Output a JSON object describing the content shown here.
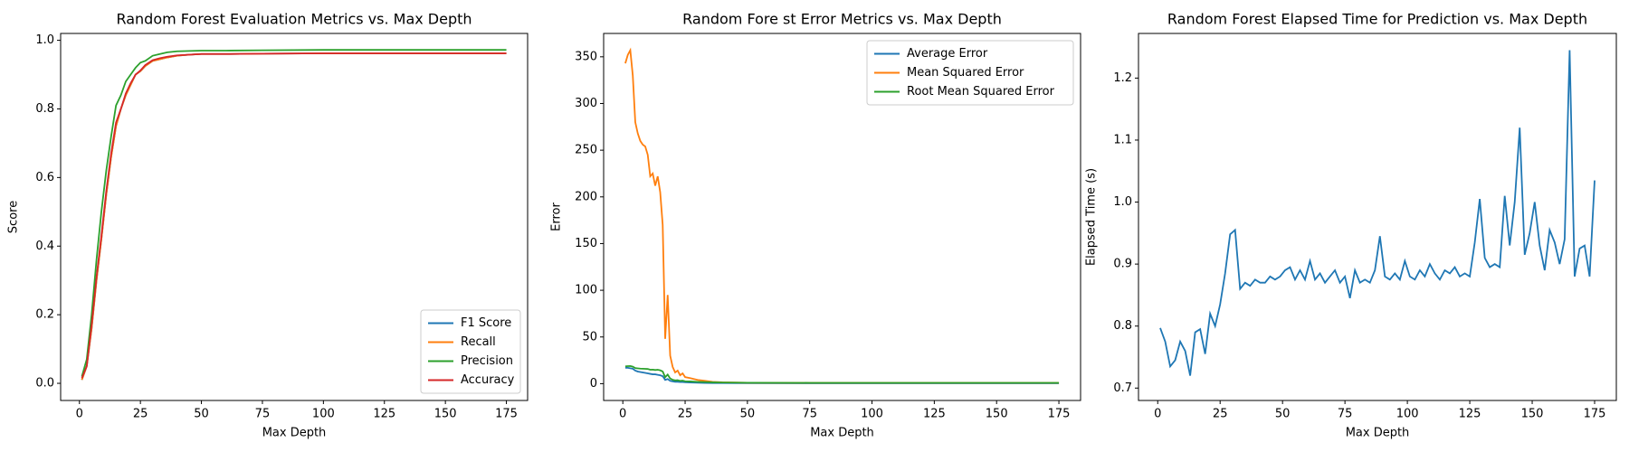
{
  "chart_data": [
    {
      "type": "line",
      "title": "Random Forest Evaluation Metrics vs. Max Depth",
      "xlabel": "Max Depth",
      "ylabel": "Score",
      "x": [
        1,
        3,
        5,
        7,
        9,
        11,
        13,
        15,
        17,
        19,
        21,
        23,
        25,
        27,
        30,
        33,
        36,
        40,
        45,
        50,
        60,
        75,
        100,
        125,
        150,
        175
      ],
      "series": [
        {
          "name": "F1 Score",
          "color": "#1f77b4",
          "values": [
            0.01,
            0.05,
            0.16,
            0.3,
            0.42,
            0.55,
            0.66,
            0.75,
            0.8,
            0.84,
            0.87,
            0.9,
            0.91,
            0.925,
            0.94,
            0.945,
            0.95,
            0.955,
            0.958,
            0.96,
            0.96,
            0.961,
            0.962,
            0.962,
            0.962,
            0.962
          ]
        },
        {
          "name": "Recall",
          "color": "#ff7f0e",
          "values": [
            0.01,
            0.05,
            0.16,
            0.3,
            0.42,
            0.55,
            0.66,
            0.75,
            0.8,
            0.84,
            0.87,
            0.9,
            0.91,
            0.925,
            0.94,
            0.945,
            0.95,
            0.955,
            0.958,
            0.96,
            0.96,
            0.961,
            0.962,
            0.962,
            0.962,
            0.962
          ]
        },
        {
          "name": "Precision",
          "color": "#2ca02c",
          "values": [
            0.02,
            0.07,
            0.2,
            0.36,
            0.5,
            0.62,
            0.72,
            0.81,
            0.84,
            0.88,
            0.9,
            0.92,
            0.935,
            0.94,
            0.955,
            0.96,
            0.965,
            0.968,
            0.969,
            0.97,
            0.97,
            0.971,
            0.972,
            0.972,
            0.972,
            0.972
          ]
        },
        {
          "name": "Accuracy",
          "color": "#d62728",
          "values": [
            0.015,
            0.05,
            0.17,
            0.31,
            0.43,
            0.56,
            0.67,
            0.76,
            0.8,
            0.845,
            0.875,
            0.9,
            0.912,
            0.928,
            0.942,
            0.948,
            0.952,
            0.956,
            0.958,
            0.96,
            0.96,
            0.961,
            0.962,
            0.962,
            0.962,
            0.962
          ]
        }
      ],
      "xlim": [
        -7.7,
        183.7
      ],
      "xticks": [
        0,
        25,
        50,
        75,
        100,
        125,
        150,
        175
      ],
      "ylim": [
        -0.05,
        1.02
      ],
      "yticks": [
        {
          "value": 0,
          "label": "0.0"
        },
        0.2,
        0.4,
        0.6,
        0.8,
        {
          "value": 1,
          "label": "1.0"
        }
      ],
      "legend": "lower right"
    },
    {
      "type": "line",
      "title": "Random Fore st Error Metrics vs. Max Depth",
      "xlabel": "Max Depth",
      "ylabel": "Error",
      "x": [
        1,
        2,
        3,
        4,
        5,
        6,
        7,
        8,
        9,
        10,
        11,
        12,
        13,
        14,
        15,
        16,
        17,
        18,
        19,
        20,
        21,
        22,
        23,
        24,
        25,
        27,
        30,
        33,
        36,
        40,
        50,
        75,
        100,
        125,
        150,
        175
      ],
      "series": [
        {
          "name": "Average Error",
          "color": "#1f77b4",
          "values": [
            17,
            17,
            16.5,
            16,
            14,
            13,
            12.5,
            12,
            11.5,
            11,
            10.5,
            10,
            10,
            9.5,
            9,
            8,
            4,
            5,
            3,
            2.5,
            2,
            2,
            1.8,
            1.7,
            1.5,
            1.3,
            1,
            0.8,
            0.7,
            0.6,
            0.5,
            0.4,
            0.4,
            0.4,
            0.4,
            0.4
          ]
        },
        {
          "name": "Mean Squared Error",
          "color": "#ff7f0e",
          "values": [
            343,
            352,
            357,
            330,
            280,
            268,
            260,
            256,
            254,
            245,
            222,
            225,
            212,
            222,
            205,
            170,
            48,
            95,
            30,
            18,
            12,
            14,
            9,
            11,
            7,
            6,
            4,
            3,
            2,
            1.5,
            1,
            0.8,
            0.8,
            0.8,
            0.8,
            0.8
          ]
        },
        {
          "name": "Root Mean Squared Error",
          "color": "#2ca02c",
          "values": [
            18.5,
            18.8,
            18.9,
            18.2,
            16.7,
            16.4,
            16.1,
            16,
            15.9,
            15.7,
            14.9,
            15,
            14.6,
            14.9,
            14.3,
            13,
            6.9,
            9.7,
            5.5,
            4.2,
            3.5,
            3.7,
            3,
            3.3,
            2.6,
            2.4,
            2,
            1.7,
            1.4,
            1.2,
            1,
            0.9,
            0.9,
            0.9,
            0.9,
            0.9
          ]
        }
      ],
      "xlim": [
        -7.7,
        183.7
      ],
      "xticks": [
        0,
        25,
        50,
        75,
        100,
        125,
        150,
        175
      ],
      "ylim": [
        -18,
        375
      ],
      "yticks": [
        0,
        50,
        100,
        150,
        200,
        250,
        300,
        350
      ],
      "legend": "upper right"
    },
    {
      "type": "line",
      "title": "Random Forest Elapsed Time for Prediction vs. Max Depth",
      "xlabel": "Max Depth",
      "ylabel": "Elapsed Time (s)",
      "x": [
        1,
        3,
        5,
        7,
        9,
        11,
        13,
        15,
        17,
        19,
        21,
        23,
        25,
        27,
        29,
        31,
        33,
        35,
        37,
        39,
        41,
        43,
        45,
        47,
        49,
        51,
        53,
        55,
        57,
        59,
        61,
        63,
        65,
        67,
        69,
        71,
        73,
        75,
        77,
        79,
        81,
        83,
        85,
        87,
        89,
        91,
        93,
        95,
        97,
        99,
        101,
        103,
        105,
        107,
        109,
        111,
        113,
        115,
        117,
        119,
        121,
        123,
        125,
        127,
        129,
        131,
        133,
        135,
        137,
        139,
        141,
        143,
        145,
        147,
        149,
        151,
        153,
        155,
        157,
        159,
        161,
        163,
        165,
        167,
        169,
        171,
        173,
        175
      ],
      "series": [
        {
          "name": "Elapsed Time",
          "color": "#1f77b4",
          "values": [
            0.797,
            0.775,
            0.735,
            0.745,
            0.775,
            0.76,
            0.72,
            0.79,
            0.795,
            0.755,
            0.82,
            0.8,
            0.835,
            0.885,
            0.948,
            0.955,
            0.86,
            0.87,
            0.865,
            0.875,
            0.87,
            0.87,
            0.88,
            0.875,
            0.88,
            0.89,
            0.895,
            0.875,
            0.89,
            0.875,
            0.905,
            0.875,
            0.885,
            0.87,
            0.88,
            0.89,
            0.87,
            0.88,
            0.845,
            0.89,
            0.87,
            0.875,
            0.87,
            0.89,
            0.945,
            0.88,
            0.875,
            0.885,
            0.875,
            0.905,
            0.88,
            0.875,
            0.89,
            0.88,
            0.9,
            0.885,
            0.875,
            0.89,
            0.885,
            0.895,
            0.88,
            0.885,
            0.88,
            0.935,
            1.005,
            0.91,
            0.895,
            0.9,
            0.895,
            1.01,
            0.93,
            1.0,
            1.12,
            0.915,
            0.95,
            1.0,
            0.93,
            0.89,
            0.955,
            0.935,
            0.9,
            0.94,
            1.245,
            0.88,
            0.925,
            0.93,
            0.88,
            1.035
          ]
        }
      ],
      "xlim": [
        -7.7,
        183.7
      ],
      "xticks": [
        0,
        25,
        50,
        75,
        100,
        125,
        150,
        175
      ],
      "ylim": [
        0.68,
        1.272
      ],
      "yticks": [
        0.7,
        0.8,
        0.9,
        {
          "value": 1,
          "label": "1.0"
        },
        1.1,
        1.2
      ]
    }
  ]
}
